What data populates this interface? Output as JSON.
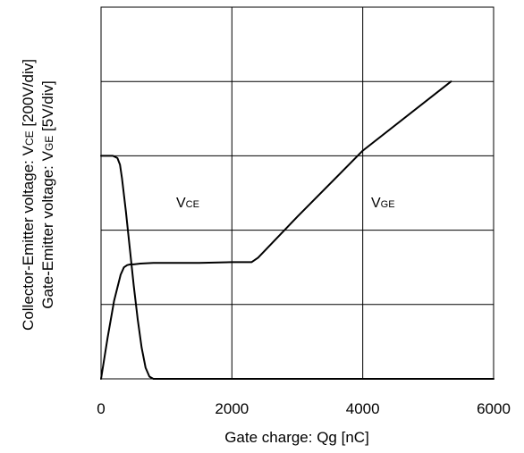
{
  "chart_data": {
    "type": "line",
    "xlabel": "Gate charge: Qg [nC]",
    "ylabel_line1": "Collector-Emitter voltage: V",
    "ylabel_line1_sub": "CE",
    "ylabel_line1_unit": " [200V/div]",
    "ylabel_line2": "Gate-Emitter voltage:  V",
    "ylabel_line2_sub": "GE",
    "ylabel_line2_unit": " [5V/div]",
    "xlim": [
      0,
      6000
    ],
    "ylim_div": [
      0,
      5
    ],
    "x_ticks": [
      0,
      2000,
      4000,
      6000
    ],
    "x_tick_labels": [
      "0",
      "2000",
      "4000",
      "6000"
    ],
    "grid": true,
    "series": [
      {
        "name_main": "V",
        "name_sub": "CE",
        "x": [
          0,
          180,
          250,
          290,
          320,
          380,
          440,
          500,
          560,
          620,
          680,
          740,
          800,
          1000,
          2000,
          3000,
          4000,
          6000
        ],
        "y": [
          3.0,
          3.0,
          2.97,
          2.88,
          2.7,
          2.25,
          1.75,
          1.25,
          0.8,
          0.42,
          0.15,
          0.03,
          0.0,
          0.0,
          0.0,
          0.0,
          0.0,
          0.0
        ]
      },
      {
        "name_main": "V",
        "name_sub": "GE",
        "x": [
          0,
          100,
          200,
          300,
          350,
          400,
          450,
          500,
          600,
          800,
          1000,
          1500,
          2000,
          2300,
          2400,
          3000,
          4000,
          5350
        ],
        "y": [
          0.0,
          0.55,
          1.05,
          1.4,
          1.5,
          1.53,
          1.54,
          1.54,
          1.55,
          1.56,
          1.56,
          1.56,
          1.57,
          1.57,
          1.63,
          2.18,
          3.07,
          4.0
        ]
      }
    ]
  }
}
